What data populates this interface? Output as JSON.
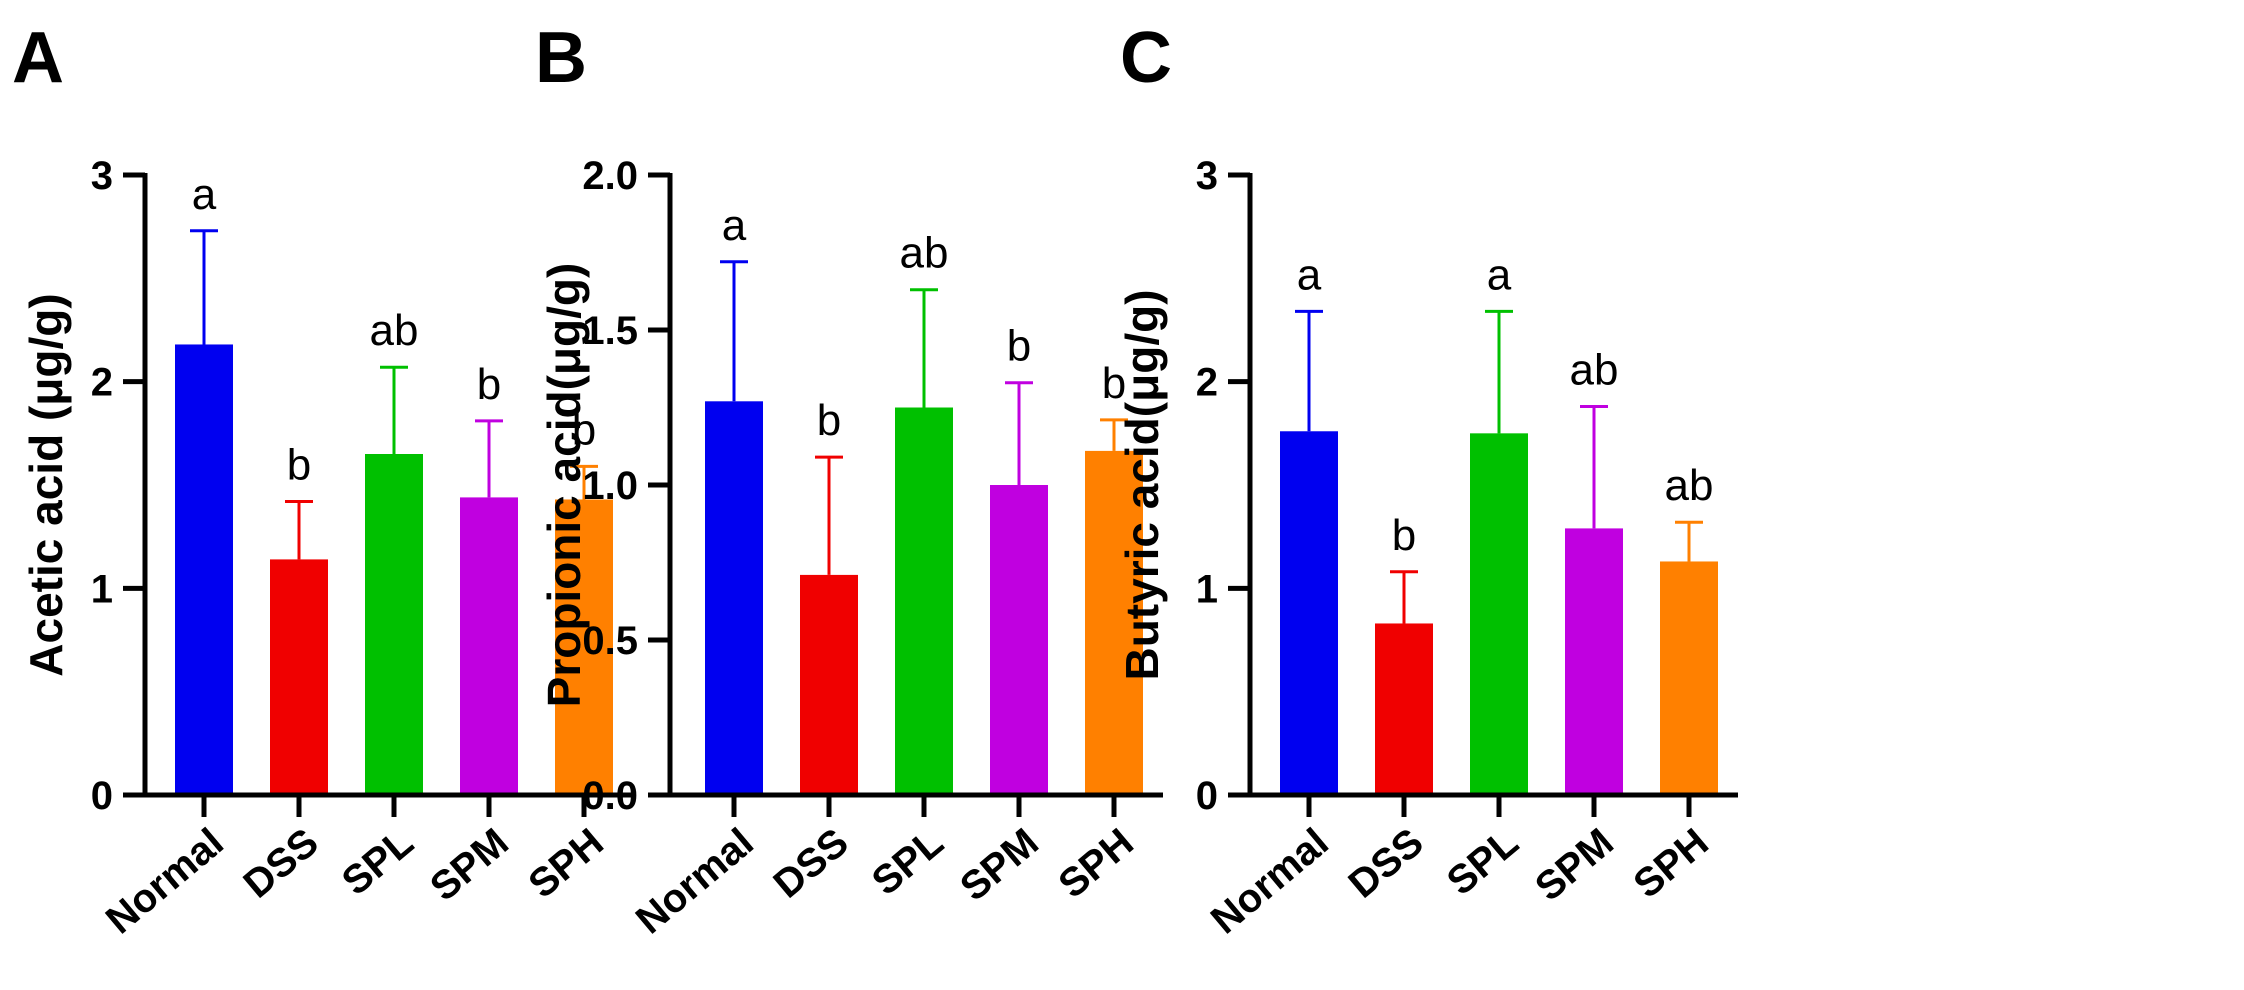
{
  "chart_data": [
    {
      "type": "bar",
      "panel": "A",
      "ylabel": "Acetic acid (μg/g)",
      "ylim": [
        0,
        3
      ],
      "yticks": [
        0,
        1,
        2,
        3
      ],
      "ytick_labels": [
        "0",
        "1",
        "2",
        "3"
      ],
      "categories": [
        "Normal",
        "DSS",
        "SPL",
        "SPM",
        "SPH"
      ],
      "values": [
        2.18,
        1.14,
        1.65,
        1.44,
        1.43
      ],
      "errors": [
        0.55,
        0.28,
        0.42,
        0.37,
        0.16
      ],
      "significance": [
        "a",
        "b",
        "ab",
        "b",
        "b"
      ]
    },
    {
      "type": "bar",
      "panel": "B",
      "ylabel": "Propionic acid(μg/g)",
      "ylim": [
        0,
        2
      ],
      "yticks": [
        0,
        0.5,
        1,
        1.5,
        2
      ],
      "ytick_labels": [
        "0.0",
        "0.5",
        "1.0",
        "1.5",
        "2.0"
      ],
      "categories": [
        "Normal",
        "DSS",
        "SPL",
        "SPM",
        "SPH"
      ],
      "values": [
        1.27,
        0.71,
        1.25,
        1.0,
        1.11
      ],
      "errors": [
        0.45,
        0.38,
        0.38,
        0.33,
        0.1
      ],
      "significance": [
        "a",
        "b",
        "ab",
        "b",
        "b"
      ]
    },
    {
      "type": "bar",
      "panel": "C",
      "ylabel": "Butyric acid(μg/g)",
      "ylim": [
        0,
        3
      ],
      "yticks": [
        0,
        1,
        2,
        3
      ],
      "ytick_labels": [
        "0",
        "1",
        "2",
        "3"
      ],
      "categories": [
        "Normal",
        "DSS",
        "SPL",
        "SPM",
        "SPH"
      ],
      "values": [
        1.76,
        0.83,
        1.75,
        1.29,
        1.13
      ],
      "errors": [
        0.58,
        0.25,
        0.59,
        0.59,
        0.19
      ],
      "significance": [
        "a",
        "b",
        "a",
        "ab",
        "ab"
      ]
    }
  ],
  "colors": {
    "Normal": "#0000f0",
    "DSS": "#f00000",
    "SPL": "#00c000",
    "SPM": "#c000e0",
    "SPH": "#ff8000",
    "axis": "#000000"
  }
}
